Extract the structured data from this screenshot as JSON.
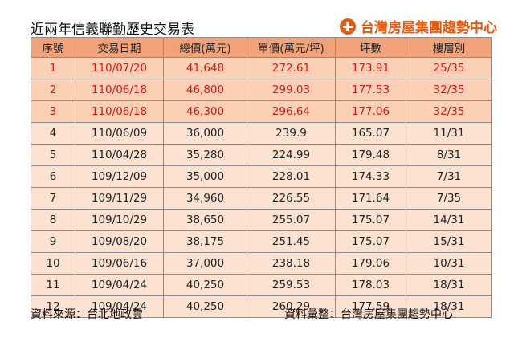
{
  "title": "近兩年信義聯勤歷史交易表",
  "brand": {
    "name": "台灣房屋集團趨勢中心",
    "accent": "#e25b12"
  },
  "colors": {
    "header_bg": "#f0a27a",
    "top_row_bg": "#fbd0b4",
    "row_bg": "#fde2d1",
    "highlight_text": "#d81818"
  },
  "table": {
    "columns": [
      "序號",
      "交易日期",
      "總價(萬元)",
      "單價(萬元/坪)",
      "坪數",
      "樓層別"
    ],
    "rows": [
      {
        "no": "1",
        "date": "110/07/20",
        "total": "41,648",
        "unit": "272.61",
        "ping": "173.91",
        "floor": "25/35",
        "highlight": true
      },
      {
        "no": "2",
        "date": "110/06/18",
        "total": "46,800",
        "unit": "299.03",
        "ping": "177.53",
        "floor": "32/35",
        "highlight": true
      },
      {
        "no": "3",
        "date": "110/06/18",
        "total": "46,300",
        "unit": "296.64",
        "ping": "177.06",
        "floor": "32/35",
        "highlight": true
      },
      {
        "no": "4",
        "date": "110/06/09",
        "total": "36,000",
        "unit": "239.9",
        "ping": "165.07",
        "floor": "11/31",
        "highlight": false
      },
      {
        "no": "5",
        "date": "110/04/28",
        "total": "35,280",
        "unit": "224.99",
        "ping": "179.48",
        "floor": "8/31",
        "highlight": false
      },
      {
        "no": "6",
        "date": "109/12/09",
        "total": "35,000",
        "unit": "228.01",
        "ping": "174.33",
        "floor": "7/31",
        "highlight": false
      },
      {
        "no": "7",
        "date": "109/11/29",
        "total": "34,960",
        "unit": "226.55",
        "ping": "171.64",
        "floor": "7/35",
        "highlight": false
      },
      {
        "no": "8",
        "date": "109/10/29",
        "total": "38,650",
        "unit": "255.07",
        "ping": "175.07",
        "floor": "14/31",
        "highlight": false
      },
      {
        "no": "9",
        "date": "109/08/20",
        "total": "38,175",
        "unit": "251.45",
        "ping": "175.07",
        "floor": "15/31",
        "highlight": false
      },
      {
        "no": "10",
        "date": "109/06/16",
        "total": "37,000",
        "unit": "238.18",
        "ping": "179.06",
        "floor": "10/31",
        "highlight": false
      },
      {
        "no": "11",
        "date": "109/04/24",
        "total": "40,250",
        "unit": "259.53",
        "ping": "178.03",
        "floor": "18/31",
        "highlight": false
      },
      {
        "no": "12",
        "date": "109/04/24",
        "total": "40,250",
        "unit": "260.29",
        "ping": "177.59",
        "floor": "18/31",
        "highlight": false
      }
    ]
  },
  "footer": {
    "source": "資料來源：台北地政雲",
    "compiled": "資料彙整：台灣房屋集團趨勢中心"
  }
}
